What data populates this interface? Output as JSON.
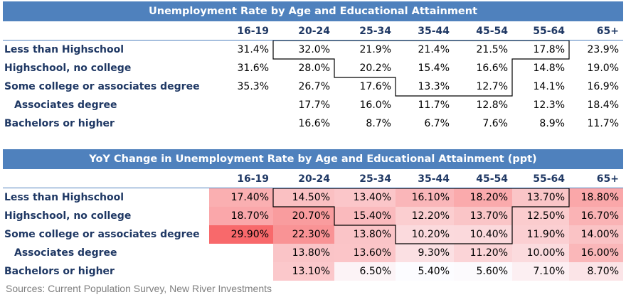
{
  "chart_data": [
    {
      "type": "table",
      "title": "Unemployment Rate by Age and Educational Attainment",
      "columns": [
        "16-19",
        "20-24",
        "25-34",
        "35-44",
        "45-54",
        "55-64",
        "65+"
      ],
      "rows": [
        {
          "label": "Less than Highschool",
          "indent": false,
          "values": [
            "31.4%",
            "32.0%",
            "21.9%",
            "21.4%",
            "21.5%",
            "17.8%",
            "23.9%"
          ]
        },
        {
          "label": "Highschool, no college",
          "indent": false,
          "values": [
            "31.6%",
            "28.0%",
            "20.2%",
            "15.4%",
            "16.6%",
            "14.8%",
            "19.0%"
          ]
        },
        {
          "label": "Some college or associates degree",
          "indent": false,
          "values": [
            "35.3%",
            "26.7%",
            "17.6%",
            "13.3%",
            "12.7%",
            "14.1%",
            "16.9%"
          ]
        },
        {
          "label": "Associates degree",
          "indent": true,
          "values": [
            "",
            "17.7%",
            "16.0%",
            "11.7%",
            "12.8%",
            "12.3%",
            "18.4%"
          ]
        },
        {
          "label": "Bachelors or higher",
          "indent": false,
          "values": [
            "",
            "16.6%",
            "8.7%",
            "6.7%",
            "7.6%",
            "8.9%",
            "11.7%"
          ]
        }
      ],
      "heatmap": false,
      "highlight_color": "#f8696b"
    },
    {
      "type": "heatmap",
      "title": "YoY Change in Unemployment Rate by Age and Educational Attainment (ppt)",
      "columns": [
        "16-19",
        "20-24",
        "25-34",
        "35-44",
        "45-54",
        "55-64",
        "65+"
      ],
      "rows": [
        {
          "label": "Less than Highschool",
          "indent": false,
          "values": [
            "17.40%",
            "14.50%",
            "13.40%",
            "16.10%",
            "18.20%",
            "13.70%",
            "18.80%"
          ]
        },
        {
          "label": "Highschool, no college",
          "indent": false,
          "values": [
            "18.70%",
            "20.70%",
            "15.40%",
            "12.20%",
            "13.70%",
            "12.50%",
            "16.70%"
          ]
        },
        {
          "label": "Some college or associates degree",
          "indent": false,
          "values": [
            "29.90%",
            "22.30%",
            "13.80%",
            "10.20%",
            "10.40%",
            "11.90%",
            "14.00%"
          ]
        },
        {
          "label": "Associates degree",
          "indent": true,
          "values": [
            "",
            "13.80%",
            "13.60%",
            "9.30%",
            "11.20%",
            "10.00%",
            "16.00%"
          ]
        },
        {
          "label": "Bachelors or higher",
          "indent": false,
          "values": [
            "",
            "13.10%",
            "6.50%",
            "5.40%",
            "5.60%",
            "7.10%",
            "8.70%"
          ]
        }
      ],
      "heatmap": true,
      "color_scale": {
        "low": "#fcfcff",
        "high": "#f8696b"
      }
    }
  ],
  "source": "Sources: Current Population Survey, New River Investments"
}
